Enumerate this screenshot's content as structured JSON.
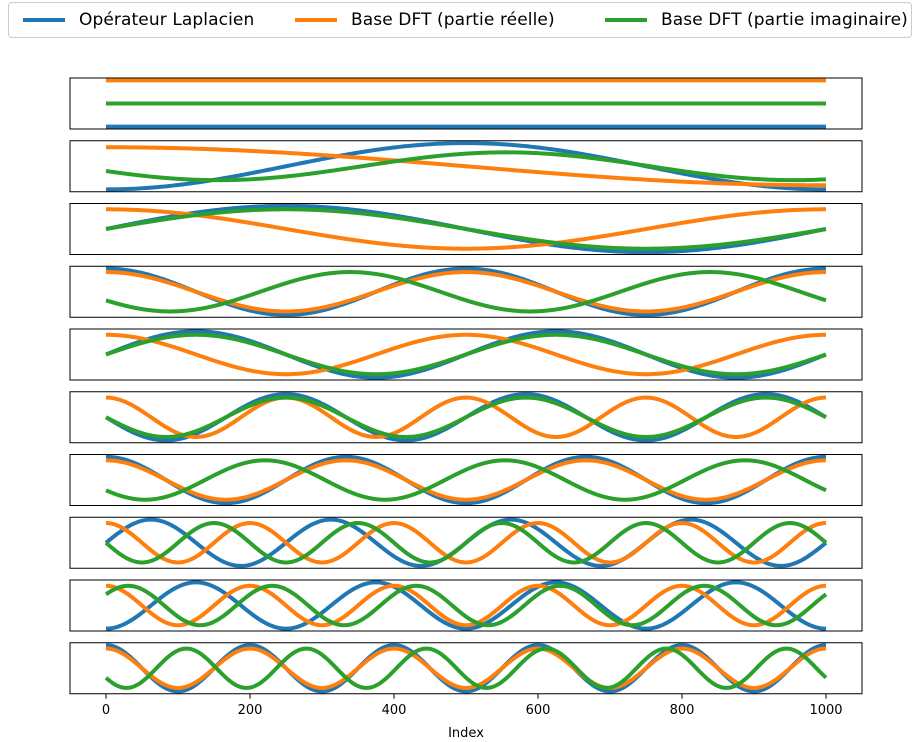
{
  "legend": {
    "placement": "top",
    "items": [
      {
        "label": "Opérateur Laplacien",
        "color": "#1f77b4"
      },
      {
        "label": "Base DFT (partie réelle)",
        "color": "#ff7f0e"
      },
      {
        "label": "Base DFT (partie imaginaire)",
        "color": "#2ca02c"
      }
    ]
  },
  "chart_data": {
    "type": "line",
    "title": "",
    "xlabel": "Index",
    "ylabel": "",
    "xlim": [
      -50,
      1050
    ],
    "x_ticks": [
      0,
      200,
      400,
      600,
      800,
      1000
    ],
    "x_range": [
      0,
      1000
    ],
    "grid": false,
    "panels": [
      {
        "index": 0,
        "series": [
          {
            "name": "Opérateur Laplacien",
            "color": "#1f77b4",
            "function": "constant",
            "value": -1
          },
          {
            "name": "Base DFT (partie réelle)",
            "color": "#ff7f0e",
            "function": "constant",
            "value": 1
          },
          {
            "name": "Base DFT (partie imaginaire)",
            "color": "#2ca02c",
            "function": "constant",
            "value": 0
          }
        ],
        "ylim": [
          -1.1,
          1.1
        ]
      },
      {
        "index": 1,
        "series": [
          {
            "name": "Opérateur Laplacien",
            "color": "#1f77b4",
            "function": "cos",
            "cycles": 1,
            "amplitude": -1,
            "phase": 0
          },
          {
            "name": "Base DFT (partie réelle)",
            "color": "#ff7f0e",
            "function": "cos",
            "cycles": 0.5,
            "amplitude": 0.82,
            "phase": 0
          },
          {
            "name": "Base DFT (partie imaginaire)",
            "color": "#2ca02c",
            "function": "sin",
            "cycles": 1.25,
            "amplitude": -0.6,
            "phase": 0.35
          }
        ],
        "ylim": [
          -1.1,
          1.1
        ]
      },
      {
        "index": 2,
        "series": [
          {
            "name": "Opérateur Laplacien",
            "color": "#1f77b4",
            "function": "sin",
            "cycles": 1,
            "amplitude": 1,
            "phase": 0
          },
          {
            "name": "Base DFT (partie réelle)",
            "color": "#ff7f0e",
            "function": "cos",
            "cycles": 1,
            "amplitude": 0.85,
            "phase": 0
          },
          {
            "name": "Base DFT (partie imaginaire)",
            "color": "#2ca02c",
            "function": "sin",
            "cycles": 1,
            "amplitude": 0.85,
            "phase": 0
          }
        ],
        "ylim": [
          -1.1,
          1.1
        ]
      },
      {
        "index": 3,
        "series": [
          {
            "name": "Opérateur Laplacien",
            "color": "#1f77b4",
            "function": "cos",
            "cycles": 2,
            "amplitude": 1,
            "phase": 0
          },
          {
            "name": "Base DFT (partie réelle)",
            "color": "#ff7f0e",
            "function": "cos",
            "cycles": 2,
            "amplitude": 0.85,
            "phase": 0
          },
          {
            "name": "Base DFT (partie imaginaire)",
            "color": "#2ca02c",
            "function": "sin",
            "cycles": 2,
            "amplitude": -0.85,
            "phase": 0.45
          }
        ],
        "ylim": [
          -1.1,
          1.1
        ]
      },
      {
        "index": 4,
        "series": [
          {
            "name": "Opérateur Laplacien",
            "color": "#1f77b4",
            "function": "sin",
            "cycles": 2,
            "amplitude": 1,
            "phase": 0
          },
          {
            "name": "Base DFT (partie réelle)",
            "color": "#ff7f0e",
            "function": "cos",
            "cycles": 2,
            "amplitude": 0.85,
            "phase": 0
          },
          {
            "name": "Base DFT (partie imaginaire)",
            "color": "#2ca02c",
            "function": "sin",
            "cycles": 2,
            "amplitude": 0.85,
            "phase": 0
          }
        ],
        "ylim": [
          -1.1,
          1.1
        ]
      },
      {
        "index": 5,
        "series": [
          {
            "name": "Opérateur Laplacien",
            "color": "#1f77b4",
            "function": "sin",
            "cycles": 3,
            "amplitude": -1,
            "phase": 0
          },
          {
            "name": "Base DFT (partie réelle)",
            "color": "#ff7f0e",
            "function": "cos",
            "cycles": 4,
            "amplitude": 0.85,
            "phase": 0
          },
          {
            "name": "Base DFT (partie imaginaire)",
            "color": "#2ca02c",
            "function": "sin",
            "cycles": 3,
            "amplitude": -0.85,
            "phase": 0
          }
        ],
        "ylim": [
          -1.1,
          1.1
        ]
      },
      {
        "index": 6,
        "series": [
          {
            "name": "Opérateur Laplacien",
            "color": "#1f77b4",
            "function": "cos",
            "cycles": 3,
            "amplitude": 1,
            "phase": 0
          },
          {
            "name": "Base DFT (partie réelle)",
            "color": "#ff7f0e",
            "function": "cos",
            "cycles": 3,
            "amplitude": 0.85,
            "phase": 0
          },
          {
            "name": "Base DFT (partie imaginaire)",
            "color": "#2ca02c",
            "function": "sin",
            "cycles": 3,
            "amplitude": -0.85,
            "phase": 0.55
          }
        ],
        "ylim": [
          -1.1,
          1.1
        ]
      },
      {
        "index": 7,
        "series": [
          {
            "name": "Opérateur Laplacien",
            "color": "#1f77b4",
            "function": "sin",
            "cycles": 4,
            "amplitude": 1,
            "phase": 0
          },
          {
            "name": "Base DFT (partie réelle)",
            "color": "#ff7f0e",
            "function": "cos",
            "cycles": 5,
            "amplitude": 0.85,
            "phase": 0
          },
          {
            "name": "Base DFT (partie imaginaire)",
            "color": "#2ca02c",
            "function": "sin",
            "cycles": 5,
            "amplitude": -0.85,
            "phase": 0
          }
        ],
        "ylim": [
          -1.1,
          1.1
        ]
      },
      {
        "index": 8,
        "series": [
          {
            "name": "Opérateur Laplacien",
            "color": "#1f77b4",
            "function": "cos",
            "cycles": 4,
            "amplitude": -1,
            "phase": 0
          },
          {
            "name": "Base DFT (partie réelle)",
            "color": "#ff7f0e",
            "function": "cos",
            "cycles": 5,
            "amplitude": 0.85,
            "phase": 0
          },
          {
            "name": "Base DFT (partie imaginaire)",
            "color": "#2ca02c",
            "function": "sin",
            "cycles": 5,
            "amplitude": 0.85,
            "phase": 0.6
          }
        ],
        "ylim": [
          -1.1,
          1.1
        ]
      },
      {
        "index": 9,
        "series": [
          {
            "name": "Opérateur Laplacien",
            "color": "#1f77b4",
            "function": "cos",
            "cycles": 5,
            "amplitude": 1,
            "phase": 0
          },
          {
            "name": "Base DFT (partie réelle)",
            "color": "#ff7f0e",
            "function": "cos",
            "cycles": 5,
            "amplitude": 0.85,
            "phase": 0
          },
          {
            "name": "Base DFT (partie imaginaire)",
            "color": "#2ca02c",
            "function": "sin",
            "cycles": 6,
            "amplitude": -0.85,
            "phase": 0.5
          }
        ],
        "ylim": [
          -1.1,
          1.1
        ]
      }
    ]
  }
}
